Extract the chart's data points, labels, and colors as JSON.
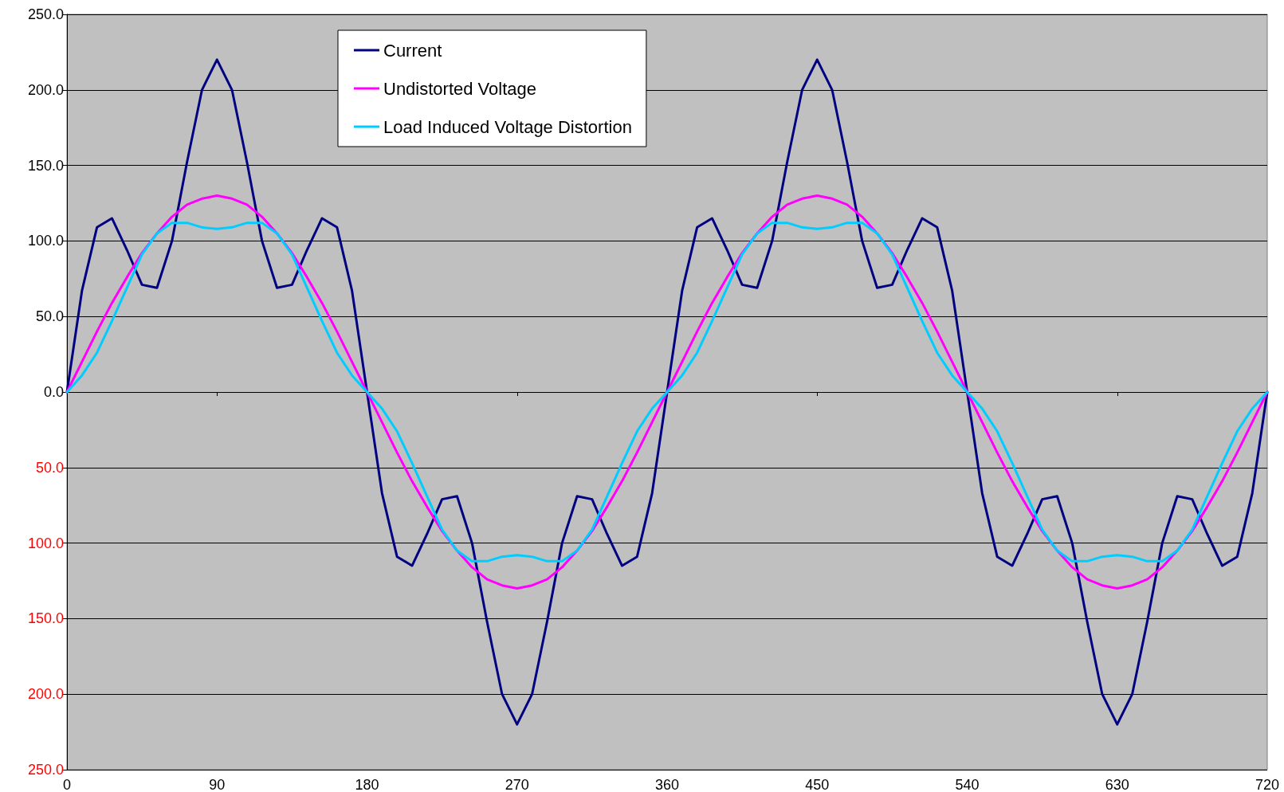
{
  "chart_data": {
    "type": "line",
    "x": [
      0,
      9,
      18,
      27,
      36,
      45,
      54,
      63,
      72,
      81,
      90,
      99,
      108,
      117,
      126,
      135,
      144,
      153,
      162,
      171,
      180,
      189,
      198,
      207,
      216,
      225,
      234,
      243,
      252,
      261,
      270,
      279,
      288,
      297,
      306,
      315,
      324,
      333,
      342,
      351,
      360,
      369,
      378,
      387,
      396,
      405,
      414,
      423,
      432,
      441,
      450,
      459,
      468,
      477,
      486,
      495,
      504,
      513,
      522,
      531,
      540,
      549,
      558,
      567,
      576,
      585,
      594,
      603,
      612,
      621,
      630,
      639,
      648,
      657,
      666,
      675,
      684,
      693,
      702,
      711,
      720
    ],
    "series": [
      {
        "name": "Current",
        "color": "#000080",
        "values": [
          0,
          67,
          109,
          115,
          94,
          71,
          69,
          100,
          152,
          200,
          220,
          200,
          152,
          100,
          69,
          71,
          94,
          115,
          109,
          67,
          0,
          -67,
          -109,
          -115,
          -94,
          -71,
          -69,
          -100,
          -152,
          -200,
          -220,
          -200,
          -152,
          -100,
          -69,
          -71,
          -94,
          -115,
          -109,
          -67,
          0,
          67,
          109,
          115,
          94,
          71,
          69,
          100,
          152,
          200,
          220,
          200,
          152,
          100,
          69,
          71,
          94,
          115,
          109,
          67,
          0,
          -67,
          -109,
          -115,
          -94,
          -71,
          -69,
          -100,
          -152,
          -200,
          -220,
          -200,
          -152,
          -100,
          -69,
          -71,
          -94,
          -115,
          -109,
          -67,
          0
        ]
      },
      {
        "name": "Undistorted Voltage",
        "color": "#ff00ff",
        "values": [
          0,
          20,
          40,
          59,
          76,
          92,
          105,
          116,
          124,
          128,
          130,
          128,
          124,
          116,
          105,
          92,
          76,
          59,
          40,
          20,
          0,
          -20,
          -40,
          -59,
          -76,
          -92,
          -105,
          -116,
          -124,
          -128,
          -130,
          -128,
          -124,
          -116,
          -105,
          -92,
          -76,
          -59,
          -40,
          -20,
          0,
          20,
          40,
          59,
          76,
          92,
          105,
          116,
          124,
          128,
          130,
          128,
          124,
          116,
          105,
          92,
          76,
          59,
          40,
          20,
          0,
          -20,
          -40,
          -59,
          -76,
          -92,
          -105,
          -116,
          -124,
          -128,
          -130,
          -128,
          -124,
          -116,
          -105,
          -92,
          -76,
          -59,
          -40,
          -20,
          0
        ]
      },
      {
        "name": "Load Induced Voltage Distortion",
        "color": "#00ccff",
        "values": [
          0,
          11,
          26,
          47,
          69,
          91,
          105,
          112,
          112,
          109,
          108,
          109,
          112,
          112,
          105,
          91,
          69,
          47,
          26,
          11,
          0,
          -11,
          -26,
          -47,
          -69,
          -91,
          -105,
          -112,
          -112,
          -109,
          -108,
          -109,
          -112,
          -112,
          -105,
          -91,
          -69,
          -47,
          -26,
          -11,
          0,
          11,
          26,
          47,
          69,
          91,
          105,
          112,
          112,
          109,
          108,
          109,
          112,
          112,
          105,
          91,
          69,
          47,
          26,
          11,
          0,
          -11,
          -26,
          -47,
          -69,
          -91,
          -105,
          -112,
          -112,
          -109,
          -108,
          -109,
          -112,
          -112,
          -105,
          -91,
          -69,
          -47,
          -26,
          -11,
          0
        ]
      }
    ],
    "xlim": [
      0,
      720
    ],
    "xticks": [
      0,
      90,
      180,
      270,
      360,
      450,
      540,
      630,
      720
    ],
    "ylim": [
      -250,
      250
    ],
    "yticks": [
      {
        "value": -250,
        "label": "250.0"
      },
      {
        "value": -200,
        "label": "200.0"
      },
      {
        "value": -150,
        "label": "150.0"
      },
      {
        "value": -100,
        "label": "100.0"
      },
      {
        "value": -50,
        "label": "50.0"
      },
      {
        "value": 0,
        "label": "0.0"
      },
      {
        "value": 50,
        "label": "50.0"
      },
      {
        "value": 100,
        "label": "100.0"
      },
      {
        "value": 150,
        "label": "150.0"
      },
      {
        "value": 200,
        "label": "200.0"
      },
      {
        "value": 250,
        "label": "250.0"
      }
    ],
    "grid": "y",
    "legend": "top",
    "marker": "none",
    "line_style": "solid"
  }
}
